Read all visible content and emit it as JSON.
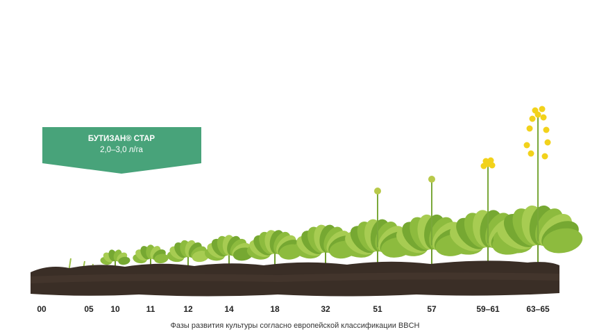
{
  "product": {
    "name": "БУТИЗАН® СТАР",
    "rate": "2,0–3,0 л/га"
  },
  "stages": [
    "00",
    "05",
    "10",
    "11",
    "12",
    "14",
    "18",
    "32",
    "51",
    "57",
    "59–61",
    "63–65"
  ],
  "caption": "Фазы развития культуры согласно европейской классификации BBCH"
}
